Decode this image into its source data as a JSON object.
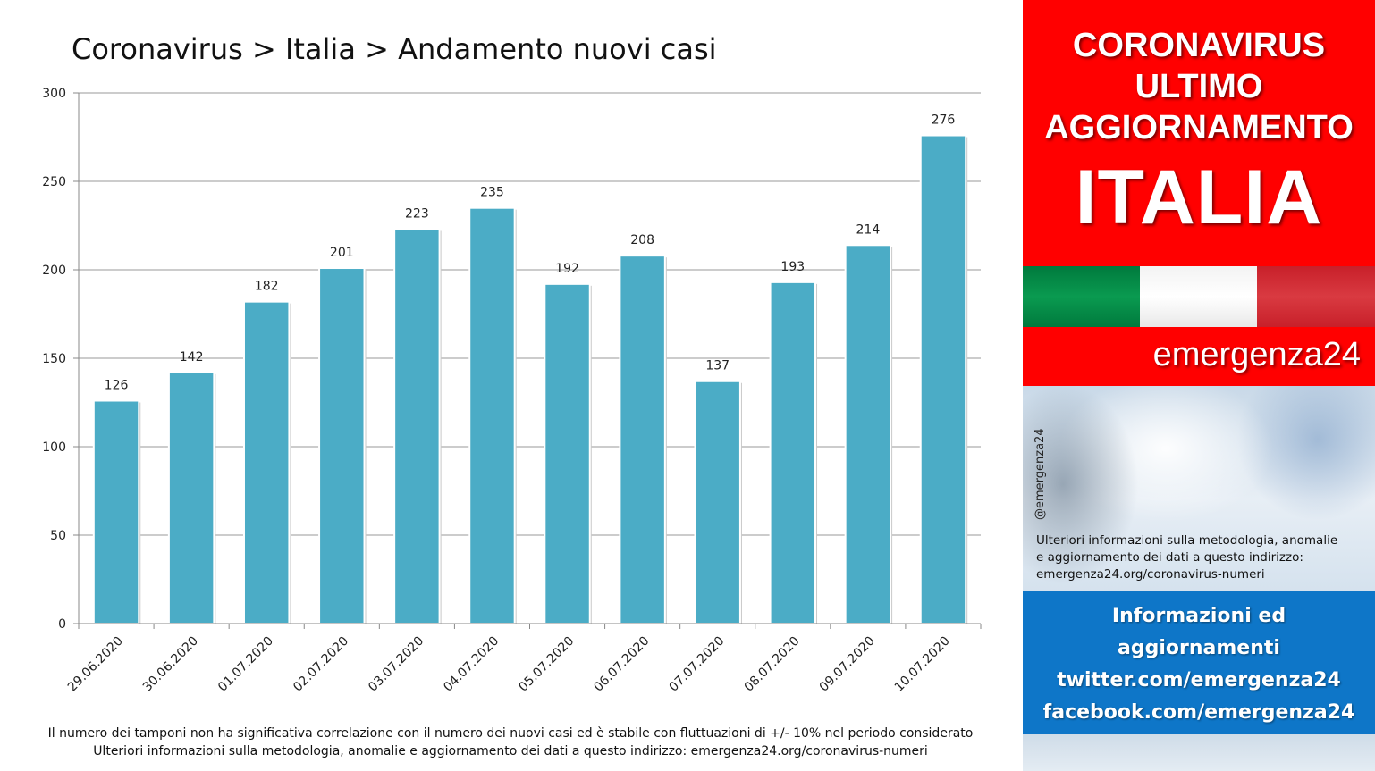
{
  "chart_data": {
    "type": "bar",
    "title": "Coronavirus > Italia > Andamento nuovi casi",
    "categories": [
      "29.06.2020",
      "30.06.2020",
      "01.07.2020",
      "02.07.2020",
      "03.07.2020",
      "04.07.2020",
      "05.07.2020",
      "06.07.2020",
      "07.07.2020",
      "08.07.2020",
      "09.07.2020",
      "10.07.2020"
    ],
    "values": [
      126,
      142,
      182,
      201,
      223,
      235,
      192,
      208,
      137,
      193,
      214,
      276
    ],
    "y_ticks": [
      0,
      50,
      100,
      150,
      200,
      250,
      300
    ],
    "ylim": [
      0,
      300
    ],
    "xlabel": "",
    "ylabel": "",
    "grid": true,
    "data_labels": true,
    "bar_color": "#4bacc6",
    "footnote": [
      "Il numero dei tamponi non ha significativa correlazione con il numero dei nuovi casi ed è stabile con fluttuazioni di +/- 10% nel periodo considerato",
      "Ulteriori informazioni sulla metodologia, anomalie e aggiornamento dei dati a questo indirizzo: emergenza24.org/coronavirus-numeri"
    ]
  },
  "sidebar": {
    "header_lines": [
      "CORONAVIRUS",
      "ULTIMO",
      "AGGIORNAMENTO",
      "ITALIA"
    ],
    "header_color": "#ff0000",
    "flag_colors": [
      "#009246",
      "#ffffff",
      "#ce2b37"
    ],
    "brand": "emergenza24",
    "handle": "@emergenza24",
    "info_lines": [
      "Ulteriori informazioni sulla metodologia, anomalie",
      "e aggiornamento dei dati a questo indirizzo:",
      "emergenza24.org/coronavirus-numeri"
    ],
    "promo_lines": [
      "Informazioni ed",
      "aggiornamenti",
      "twitter.com/emergenza24",
      "facebook.com/emergenza24"
    ],
    "promo_color": "#0e76c8"
  }
}
